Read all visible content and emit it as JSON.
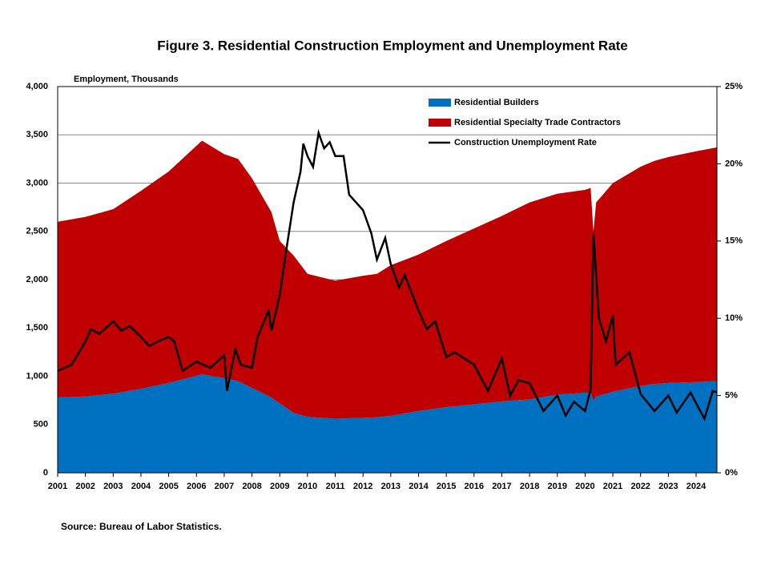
{
  "chart_data": {
    "type": "stacked-area-line",
    "title": "Figure 3. Residential Construction  Employment and Unemployment Rate",
    "y_label": "Employment, Thousands",
    "source": "Source: Bureau of Labor Statistics.",
    "x": [
      2001,
      2002,
      2003,
      2004,
      2005,
      2006.2,
      2007,
      2007.5,
      2008,
      2008.7,
      2009,
      2009.5,
      2010,
      2011,
      2012,
      2012.5,
      2013,
      2014,
      2015,
      2016,
      2017,
      2018,
      2019,
      2020,
      2020.2,
      2020.3,
      2020.4,
      2021,
      2022,
      2022.5,
      2023,
      2024,
      2024.75
    ],
    "series": [
      {
        "name": "Residential Builders",
        "color": "#0070c0",
        "values": [
          780,
          790,
          820,
          870,
          930,
          1020,
          980,
          950,
          880,
          780,
          720,
          620,
          580,
          560,
          570,
          575,
          590,
          640,
          680,
          710,
          740,
          760,
          810,
          830,
          830,
          750,
          790,
          840,
          900,
          920,
          930,
          940,
          950
        ]
      },
      {
        "name": "Residential Specialty Trade Contractors",
        "color": "#c00000",
        "values": [
          1820,
          1860,
          1910,
          2050,
          2190,
          2420,
          2320,
          2300,
          2170,
          1920,
          1680,
          1630,
          1480,
          1430,
          1470,
          1485,
          1560,
          1620,
          1720,
          1820,
          1920,
          2040,
          2080,
          2100,
          2120,
          1750,
          2010,
          2160,
          2270,
          2310,
          2340,
          2390,
          2420
        ]
      },
      {
        "name": "Construction Unemployment Rate",
        "color": "#000000",
        "axis": "y2",
        "x": [
          2001,
          2001.5,
          2002,
          2002.2,
          2002.5,
          2003,
          2003.3,
          2003.6,
          2004,
          2004.3,
          2004.6,
          2005,
          2005.2,
          2005.5,
          2006,
          2006.5,
          2007,
          2007.1,
          2007.4,
          2007.6,
          2008,
          2008.2,
          2008.6,
          2008.7,
          2009,
          2009.2,
          2009.5,
          2009.75,
          2009.85,
          2010,
          2010.2,
          2010.4,
          2010.6,
          2010.8,
          2011,
          2011.3,
          2011.5,
          2012,
          2012.3,
          2012.5,
          2012.8,
          2013,
          2013.3,
          2013.5,
          2014,
          2014.3,
          2014.6,
          2015,
          2015.3,
          2016,
          2016.5,
          2017,
          2017.3,
          2017.6,
          2018,
          2018.5,
          2019,
          2019.3,
          2019.6,
          2020,
          2020.2,
          2020.3,
          2020.5,
          2020.75,
          2021,
          2021.1,
          2021.6,
          2022,
          2022.5,
          2023,
          2023.3,
          2023.8,
          2024,
          2024.3,
          2024.6,
          2024.75
        ],
        "values": [
          6.6,
          7.0,
          8.5,
          9.3,
          9.0,
          9.8,
          9.2,
          9.5,
          8.8,
          8.2,
          8.5,
          8.8,
          8.5,
          6.6,
          7.2,
          6.8,
          7.6,
          5.3,
          8.0,
          7.0,
          6.8,
          8.8,
          10.5,
          9.2,
          11.5,
          14.0,
          17.5,
          19.5,
          21.3,
          20.5,
          19.8,
          22.0,
          21.0,
          21.4,
          20.5,
          20.5,
          18.0,
          17.0,
          15.5,
          13.8,
          15.2,
          13.5,
          12.0,
          12.8,
          10.5,
          9.3,
          9.8,
          7.5,
          7.8,
          7.0,
          5.3,
          7.4,
          5.0,
          6.0,
          5.8,
          4.0,
          5.0,
          3.7,
          4.6,
          4.0,
          5.4,
          15.5,
          10.0,
          8.5,
          10.2,
          7.0,
          7.8,
          5.1,
          4.0,
          5.0,
          3.9,
          5.2,
          4.5,
          3.5,
          5.3,
          5.2
        ]
      }
    ],
    "xlim": [
      2001,
      2024.75
    ],
    "xticks": [
      2001,
      2002,
      2003,
      2004,
      2005,
      2006,
      2007,
      2008,
      2009,
      2010,
      2011,
      2012,
      2013,
      2014,
      2015,
      2016,
      2017,
      2018,
      2019,
      2020,
      2021,
      2022,
      2023,
      2024
    ],
    "ylim": [
      0,
      4000
    ],
    "yticks": [
      0,
      500,
      {
        "value": 1000,
        "label": "1,000"
      },
      {
        "value": 1500,
        "label": "1,500"
      },
      {
        "value": 2000,
        "label": "2,000"
      },
      {
        "value": 2500,
        "label": "2,500"
      },
      {
        "value": 3000,
        "label": "3,000"
      },
      {
        "value": 3500,
        "label": "3,500"
      },
      {
        "value": 4000,
        "label": "4,000"
      }
    ],
    "y2lim": [
      0,
      25
    ],
    "y2ticks": [
      {
        "value": 0,
        "label": "0%"
      },
      {
        "value": 5,
        "label": "5%"
      },
      {
        "value": 10,
        "label": "10%"
      },
      {
        "value": 15,
        "label": "15%"
      },
      {
        "value": 20,
        "label": "20%"
      },
      {
        "value": 25,
        "label": "25%"
      }
    ],
    "grid": true
  }
}
